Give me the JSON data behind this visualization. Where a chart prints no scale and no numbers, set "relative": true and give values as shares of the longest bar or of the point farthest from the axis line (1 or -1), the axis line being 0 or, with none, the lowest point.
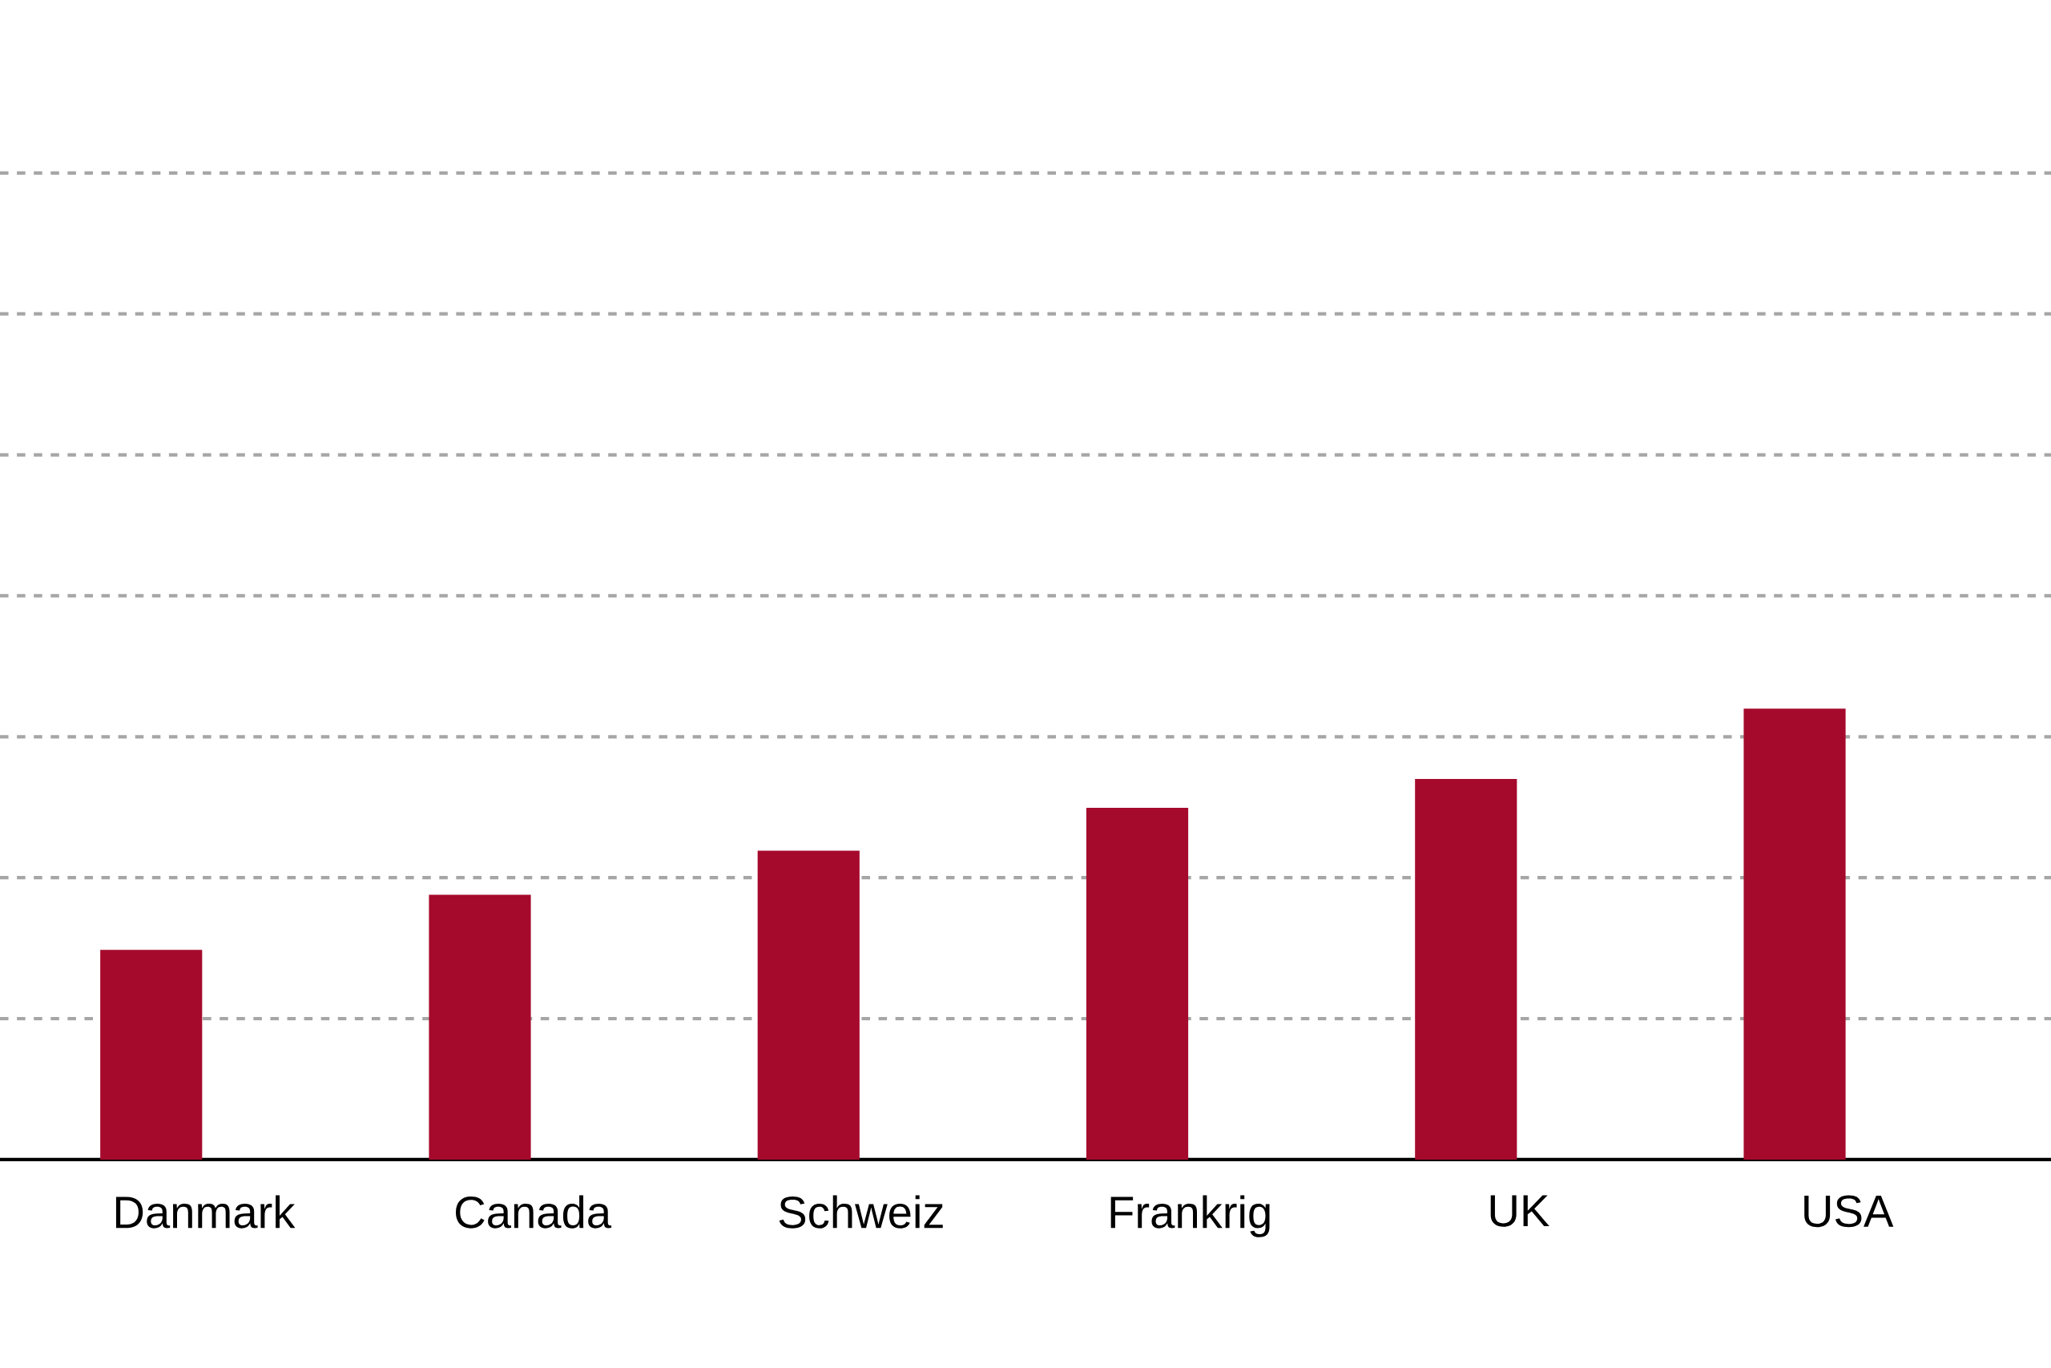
{
  "chart_data": {
    "type": "bar",
    "relative": true,
    "grid": "y",
    "color": "#a50a2d",
    "categories": [
      "Danmark",
      "Canada",
      "Schweiz",
      "Frankrig",
      "UK",
      "USA"
    ],
    "values": [
      0.465,
      0.587,
      0.685,
      0.78,
      0.844,
      1
    ]
  }
}
